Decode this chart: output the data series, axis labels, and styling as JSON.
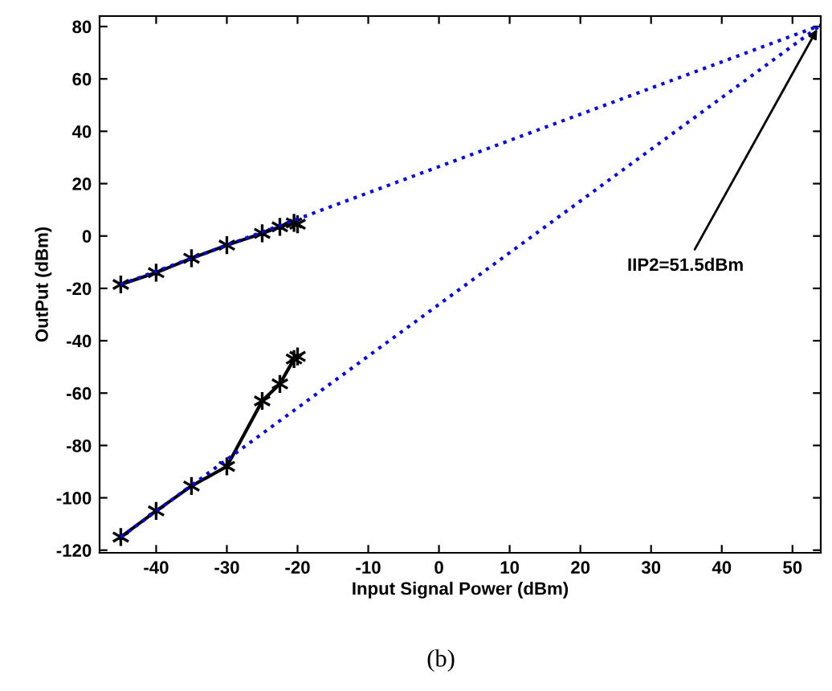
{
  "chart_data": {
    "type": "line",
    "xlabel": "Input Signal Power (dBm)",
    "ylabel": "OutPut (dBm)",
    "xlim": [
      -48,
      54
    ],
    "ylim": [
      -121,
      84
    ],
    "xticks": [
      -40,
      -30,
      -20,
      -10,
      0,
      10,
      20,
      30,
      40,
      50
    ],
    "yticks": [
      -120,
      -100,
      -80,
      -60,
      -40,
      -20,
      0,
      20,
      40,
      60,
      80
    ],
    "grid": false,
    "legend": false,
    "series": [
      {
        "color": "#000000",
        "marker": "cross",
        "line_style": "solid",
        "x": [
          -45,
          -40,
          -35,
          -30,
          -25,
          -22.5,
          -20.5,
          -20
        ],
        "values": [
          -18.5,
          -14,
          -8.5,
          -3.5,
          1,
          3.5,
          5,
          4.5
        ]
      },
      {
        "color": "#000000",
        "marker": "cross",
        "line_style": "solid",
        "x": [
          -45,
          -40,
          -35,
          -30,
          -25,
          -22.5,
          -20.5,
          -20
        ],
        "values": [
          -115,
          -105,
          -95.5,
          -88,
          -63,
          -56.5,
          -47,
          -46
        ]
      },
      {
        "color": "#0000ff",
        "marker": "none",
        "line_style": "dotted",
        "x": [
          -45,
          54
        ],
        "values": [
          -18.5,
          80.5
        ]
      },
      {
        "color": "#0000ff",
        "marker": "none",
        "line_style": "dotted",
        "x": [
          -45,
          54
        ],
        "values": [
          -115,
          80.5
        ]
      }
    ],
    "annotations": [
      {
        "text": "IIP2=51.5dBm",
        "x": 53.8,
        "y": 80.5
      },
      "(b)"
    ]
  }
}
